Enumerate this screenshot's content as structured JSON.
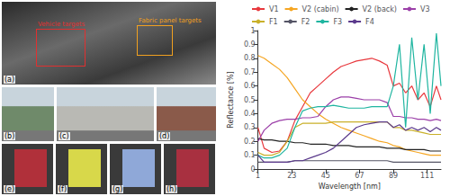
{
  "image_panels": {
    "overview": {
      "label": "(a)",
      "annotations": [
        {
          "text": "Vehicle targets",
          "color": "#e03030"
        },
        {
          "text": "Fabric panel targets",
          "color": "#f0a020"
        }
      ]
    },
    "vehicles": [
      {
        "label": "(b)"
      },
      {
        "label": "(c)"
      },
      {
        "label": "(d)"
      }
    ],
    "fabric_panels": [
      {
        "label": "(e)",
        "color": "#b0303a"
      },
      {
        "label": "(f)",
        "color": "#d8d84a"
      },
      {
        "label": "(g)",
        "color": "#8fa8d8"
      },
      {
        "label": "(h)",
        "color": "#a83040"
      }
    ]
  },
  "chart_data": {
    "type": "line",
    "x_label": "Wavelength [nm]",
    "y_label": "Reflectance [%]",
    "x": [
      1,
      5,
      10,
      15,
      20,
      25,
      30,
      35,
      40,
      45,
      50,
      55,
      60,
      65,
      70,
      75,
      80,
      85,
      89,
      93,
      97,
      101,
      105,
      109,
      113,
      117,
      120
    ],
    "xlim": [
      1,
      120
    ],
    "xticks": [
      1,
      23,
      45,
      67,
      89,
      111
    ],
    "ylim": [
      0,
      1
    ],
    "yticks": [
      0,
      0.1,
      0.2,
      0.3,
      0.4,
      0.5,
      0.6,
      0.7,
      0.8,
      0.9,
      1
    ],
    "grid": false,
    "legend": "top",
    "series": [
      {
        "name": "V1",
        "color": "#e8383d",
        "values": [
          0.3,
          0.15,
          0.12,
          0.13,
          0.2,
          0.35,
          0.45,
          0.55,
          0.6,
          0.65,
          0.7,
          0.74,
          0.76,
          0.78,
          0.79,
          0.8,
          0.78,
          0.75,
          0.6,
          0.62,
          0.55,
          0.6,
          0.5,
          0.55,
          0.45,
          0.6,
          0.5
        ]
      },
      {
        "name": "V2 (cabin)",
        "color": "#f5a623",
        "values": [
          0.82,
          0.8,
          0.76,
          0.72,
          0.66,
          0.58,
          0.5,
          0.45,
          0.4,
          0.36,
          0.33,
          0.3,
          0.28,
          0.26,
          0.24,
          0.22,
          0.2,
          0.19,
          0.17,
          0.16,
          0.14,
          0.13,
          0.12,
          0.11,
          0.1,
          0.1,
          0.1
        ]
      },
      {
        "name": "V2 (back)",
        "color": "#222222",
        "values": [
          0.22,
          0.21,
          0.21,
          0.2,
          0.2,
          0.19,
          0.19,
          0.18,
          0.18,
          0.18,
          0.17,
          0.17,
          0.17,
          0.16,
          0.16,
          0.16,
          0.16,
          0.15,
          0.15,
          0.15,
          0.14,
          0.14,
          0.14,
          0.14,
          0.13,
          0.13,
          0.13
        ]
      },
      {
        "name": "V3",
        "color": "#9b3fa8",
        "values": [
          0.2,
          0.28,
          0.33,
          0.35,
          0.36,
          0.36,
          0.37,
          0.37,
          0.38,
          0.45,
          0.5,
          0.52,
          0.52,
          0.51,
          0.5,
          0.5,
          0.5,
          0.48,
          0.38,
          0.38,
          0.37,
          0.37,
          0.36,
          0.36,
          0.35,
          0.36,
          0.35
        ]
      },
      {
        "name": "F1",
        "color": "#c9b02a",
        "values": [
          0.12,
          0.1,
          0.1,
          0.12,
          0.2,
          0.3,
          0.33,
          0.33,
          0.33,
          0.33,
          0.34,
          0.34,
          0.34,
          0.34,
          0.34,
          0.34,
          0.34,
          0.34,
          0.3,
          0.3,
          0.28,
          0.28,
          0.27,
          0.26,
          0.25,
          0.25,
          0.25
        ]
      },
      {
        "name": "F2",
        "color": "#555566",
        "values": [
          0.05,
          0.05,
          0.05,
          0.05,
          0.05,
          0.06,
          0.06,
          0.06,
          0.06,
          0.06,
          0.06,
          0.06,
          0.06,
          0.06,
          0.06,
          0.06,
          0.06,
          0.06,
          0.05,
          0.05,
          0.05,
          0.05,
          0.05,
          0.05,
          0.05,
          0.05,
          0.05
        ]
      },
      {
        "name": "F3",
        "color": "#1fb5a0",
        "values": [
          0.1,
          0.08,
          0.08,
          0.1,
          0.15,
          0.3,
          0.42,
          0.44,
          0.45,
          0.45,
          0.46,
          0.45,
          0.44,
          0.44,
          0.44,
          0.45,
          0.45,
          0.45,
          0.6,
          0.9,
          0.3,
          0.95,
          0.5,
          0.9,
          0.4,
          0.98,
          0.6
        ]
      },
      {
        "name": "F4",
        "color": "#5b3a8c",
        "values": [
          0.1,
          0.05,
          0.05,
          0.05,
          0.05,
          0.06,
          0.06,
          0.08,
          0.1,
          0.12,
          0.15,
          0.2,
          0.25,
          0.3,
          0.32,
          0.33,
          0.34,
          0.34,
          0.3,
          0.32,
          0.28,
          0.3,
          0.28,
          0.3,
          0.27,
          0.3,
          0.28
        ]
      }
    ]
  }
}
